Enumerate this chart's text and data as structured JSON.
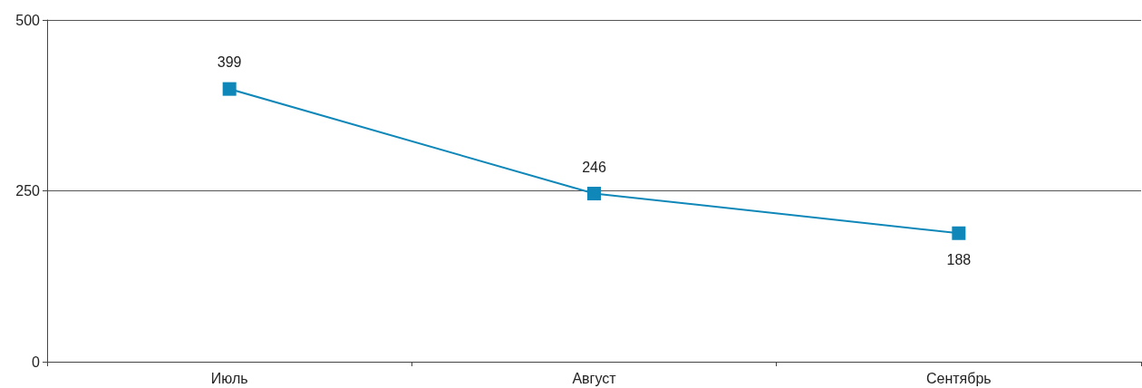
{
  "chart_data": {
    "type": "line",
    "categories": [
      "Июль",
      "Август",
      "Сентябрь"
    ],
    "series": [
      {
        "color": "#0f87b8",
        "values": [
          399,
          246,
          188
        ]
      }
    ],
    "ylim": [
      0,
      500
    ],
    "yticks": [
      0,
      250,
      500
    ],
    "grid": "y",
    "marker": "square",
    "line_style": "solid",
    "data_labels": true
  }
}
